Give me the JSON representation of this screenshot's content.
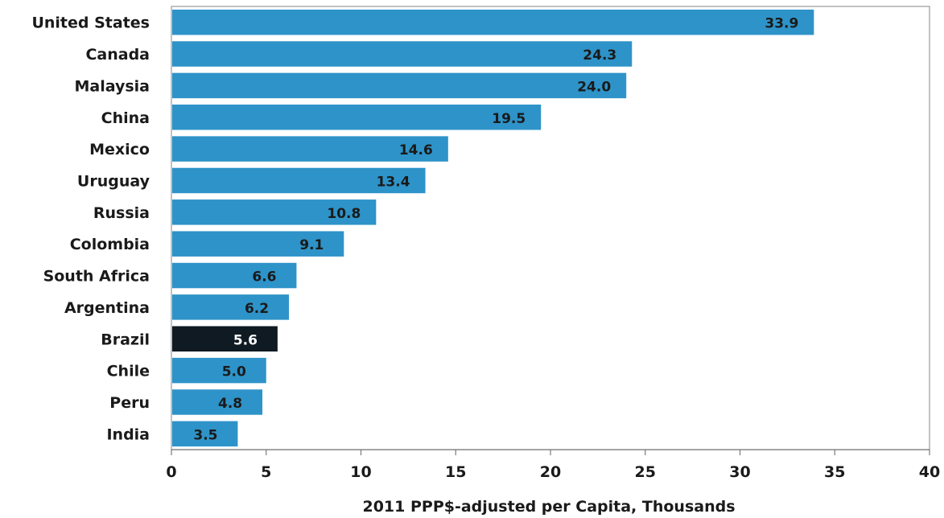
{
  "chart_data": {
    "type": "bar",
    "orientation": "horizontal",
    "categories": [
      "United States",
      "Canada",
      "Malaysia",
      "China",
      "Mexico",
      "Uruguay",
      "Russia",
      "Colombia",
      "South Africa",
      "Argentina",
      "Brazil",
      "Chile",
      "Peru",
      "India"
    ],
    "values": [
      33.9,
      24.3,
      24.0,
      19.5,
      14.6,
      13.4,
      10.8,
      9.1,
      6.6,
      6.2,
      5.6,
      5.0,
      4.8,
      3.5
    ],
    "value_labels": [
      "33.9",
      "24.3",
      "24.0",
      "19.5",
      "14.6",
      "13.4",
      "10.8",
      "9.1",
      "6.6",
      "6.2",
      "5.6",
      "5.0",
      "4.8",
      "3.5"
    ],
    "highlight": "Brazil",
    "title": "",
    "xlabel": "2011 PPP$-adjusted per Capita, Thousands",
    "ylabel": "",
    "xlim": [
      0,
      40
    ],
    "xticks": [
      0,
      5,
      10,
      15,
      20,
      25,
      30,
      35,
      40
    ],
    "xtick_labels": [
      "0",
      "5",
      "10",
      "15",
      "20",
      "25",
      "30",
      "35",
      "40"
    ],
    "grid": false,
    "legend": "none",
    "colors": {
      "bar": "#2e93c8",
      "highlight_bar": "#0f1a22",
      "value_text": "#1a1a1a",
      "highlight_value_text": "#ffffff"
    }
  }
}
